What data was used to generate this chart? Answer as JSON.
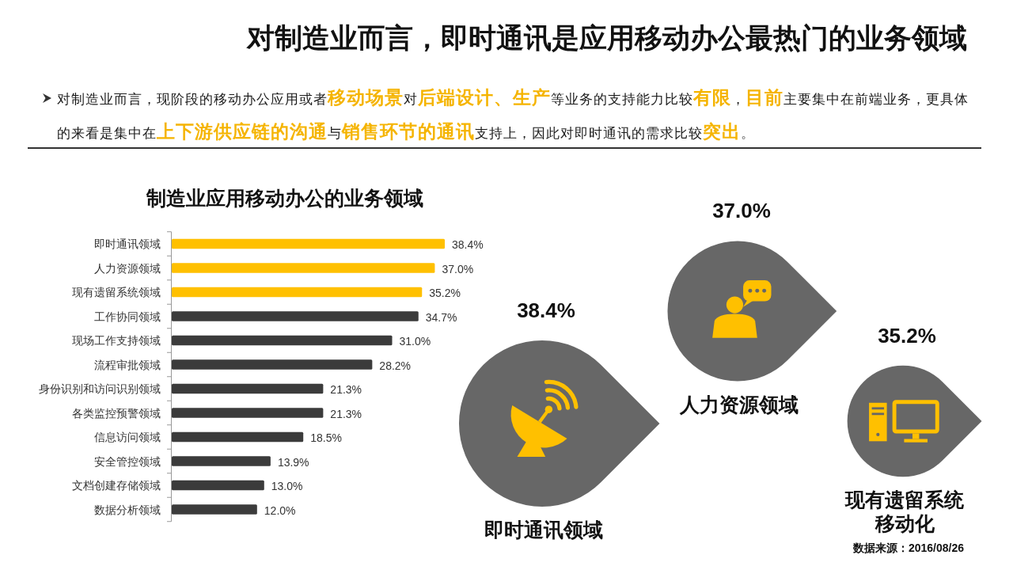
{
  "chart_data": [
    {
      "type": "other",
      "title": "对制造业而言，即时通讯是应用移动办公最热门的业务领域",
      "subtitle": "对制造业而言，现阶段的移动办公应用或者**移动场景**对**后端设计、生产**等业务的支持能力比较**有限**，**目前**主要集中在前端业务，更具体的来看是集中在**上下游供应链的沟通**与**销售环节的通讯**支持上，因此对即时通讯的需求比较**突出**。"
    },
    {
      "type": "bar",
      "orientation": "horizontal",
      "title": "制造业应用移动办公的业务领域",
      "categories": [
        "即时通讯领域",
        "人力资源领域",
        "现有遗留系统领域",
        "工作协同领域",
        "现场工作支持领域",
        "流程审批领域",
        "身份识别和访问识别领域",
        "各类监控预警领域",
        "信息访问领域",
        "安全管控领域",
        "文档创建存储领域",
        "数据分析领域"
      ],
      "values": [
        38.4,
        37.0,
        35.2,
        34.7,
        31.0,
        28.2,
        21.3,
        21.3,
        18.5,
        13.9,
        13.0,
        12.0
      ],
      "colors": [
        "#ffc000",
        "#ffc000",
        "#ffc000",
        "#3b3b3b",
        "#3b3b3b",
        "#3b3b3b",
        "#3b3b3b",
        "#3b3b3b",
        "#3b3b3b",
        "#3b3b3b",
        "#3b3b3b",
        "#3b3b3b"
      ],
      "value_labels": [
        "38.4%",
        "37.0%",
        "35.2%",
        "34.7%",
        "31.0%",
        "28.2%",
        "21.3%",
        "21.3%",
        "18.5%",
        "13.9%",
        "13.0%",
        "12.0%"
      ]
    },
    {
      "type": "other",
      "categories": [
        "即时通讯领域",
        "人力资源领域",
        "现有遗留系统移动化"
      ],
      "values": [
        38.4,
        37.0,
        35.2
      ],
      "value_labels": [
        "38.4%",
        "37.0%",
        "35.2%"
      ],
      "color": "#676767",
      "annotations": [
        "数据来源：2016/08/26"
      ]
    }
  ]
}
